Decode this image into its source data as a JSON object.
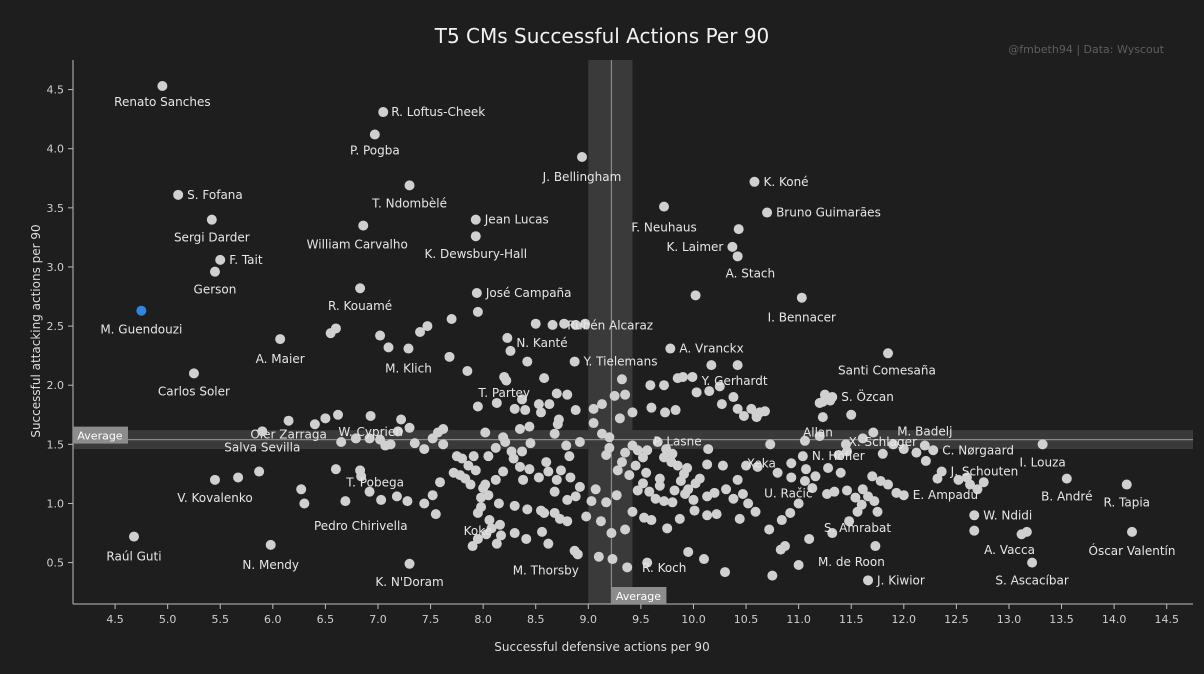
{
  "header": {
    "title": "T5 CMs Successful Actions Per 90",
    "credit": "@fmbeth94 | Data: Wyscout"
  },
  "colors": {
    "background": "#1e1e1e",
    "point": "#d0d0d0",
    "highlight": "#2f86e0",
    "text": "#e6e6e6",
    "axis": "#bdbdbd"
  },
  "chart_data": {
    "type": "scatter",
    "title": "T5 CMs Successful Actions Per 90",
    "xlabel": "Successful defensive actions per 90",
    "ylabel": "Successful attacking actions per 90",
    "xlim": [
      4.1,
      14.75
    ],
    "ylim": [
      0.15,
      4.75
    ],
    "x_ticks": [
      "4.5",
      "5.0",
      "5.5",
      "6.0",
      "6.5",
      "7.0",
      "7.5",
      "8.0",
      "8.5",
      "9.0",
      "9.5",
      "10.0",
      "10.5",
      "11.0",
      "11.5",
      "12.0",
      "12.5",
      "13.0",
      "13.5",
      "14.0",
      "14.5"
    ],
    "y_ticks": [
      "0.5",
      "1.0",
      "1.5",
      "2.0",
      "2.5",
      "3.0",
      "3.5",
      "4.0",
      "4.5"
    ],
    "grid": false,
    "average": {
      "x": 9.22,
      "y": 1.54,
      "x_band": [
        9.0,
        9.42
      ],
      "y_band": [
        1.46,
        1.62
      ],
      "label": "Average"
    },
    "points_labeled": [
      {
        "name": "Renato Sanches",
        "x": 4.95,
        "y": 4.53
      },
      {
        "name": "R. Loftus-Cheek",
        "x": 7.05,
        "y": 4.31
      },
      {
        "name": "P. Pogba",
        "x": 6.97,
        "y": 4.12
      },
      {
        "name": "J. Bellingham",
        "x": 8.94,
        "y": 3.93
      },
      {
        "name": "K. Koné",
        "x": 10.58,
        "y": 3.72
      },
      {
        "name": "T. Ndombèlé",
        "x": 7.3,
        "y": 3.69
      },
      {
        "name": "S. Fofana",
        "x": 5.1,
        "y": 3.61
      },
      {
        "name": "F. Neuhaus",
        "x": 9.72,
        "y": 3.51
      },
      {
        "name": "Bruno Guimarães",
        "x": 10.7,
        "y": 3.46
      },
      {
        "name": "Jean Lucas",
        "x": 7.93,
        "y": 3.4
      },
      {
        "name": "Sergi Darder",
        "x": 5.42,
        "y": 3.4
      },
      {
        "name": "William Carvalho",
        "x": 6.86,
        "y": 3.35
      },
      {
        "name": "K. Dewsbury-Hall",
        "x": 7.93,
        "y": 3.26
      },
      {
        "name": "K. Laimer",
        "x": 10.37,
        "y": 3.17
      },
      {
        "name": "F. Tait",
        "x": 5.5,
        "y": 3.06
      },
      {
        "name": "A. Stach",
        "x": 10.42,
        "y": 3.09
      },
      {
        "name": "Gerson",
        "x": 5.45,
        "y": 2.96
      },
      {
        "name": "R. Kouamé",
        "x": 6.83,
        "y": 2.82
      },
      {
        "name": "José Campaña",
        "x": 7.94,
        "y": 2.78
      },
      {
        "name": "I. Bennacer",
        "x": 11.03,
        "y": 2.74
      },
      {
        "name": "M. Guendouzi",
        "x": 4.75,
        "y": 2.63,
        "highlight": true
      },
      {
        "name": "Rubén Alcaraz",
        "x": 8.97,
        "y": 2.52
      },
      {
        "name": "N. Kanté",
        "x": 8.23,
        "y": 2.4
      },
      {
        "name": "A. Maier",
        "x": 6.07,
        "y": 2.39
      },
      {
        "name": "A. Vranckx",
        "x": 9.78,
        "y": 2.31
      },
      {
        "name": "M. Klich",
        "x": 7.29,
        "y": 2.31
      },
      {
        "name": "Santi Comesaña",
        "x": 11.85,
        "y": 2.27
      },
      {
        "name": "Y. Tielemans",
        "x": 8.87,
        "y": 2.2
      },
      {
        "name": "Y. Gerhardt",
        "x": 10.42,
        "y": 2.17
      },
      {
        "name": "Carlos Soler",
        "x": 5.25,
        "y": 2.1
      },
      {
        "name": "T. Partey",
        "x": 8.2,
        "y": 2.07
      },
      {
        "name": "S. Özcan",
        "x": 11.32,
        "y": 1.9
      },
      {
        "name": "W. Cyprien",
        "x": 6.93,
        "y": 1.74
      },
      {
        "name": "Oier Zarraga",
        "x": 6.15,
        "y": 1.7
      },
      {
        "name": "P. Lasne",
        "x": 9.2,
        "y": 1.56
      },
      {
        "name": "M. Badelj",
        "x": 12.2,
        "y": 1.49
      },
      {
        "name": "X. Schlager",
        "x": 11.8,
        "y": 1.42
      },
      {
        "name": "Allan",
        "x": 11.45,
        "y": 1.5
      },
      {
        "name": "I. Louza",
        "x": 13.32,
        "y": 1.5
      },
      {
        "name": "C. Nørgaard",
        "x": 12.28,
        "y": 1.45
      },
      {
        "name": "Salva Sevilla",
        "x": 5.9,
        "y": 1.61
      },
      {
        "name": "N. Höfler",
        "x": 11.04,
        "y": 1.4
      },
      {
        "name": "Xeka",
        "x": 10.93,
        "y": 1.34
      },
      {
        "name": "J. Schouten",
        "x": 12.36,
        "y": 1.27
      },
      {
        "name": "T. Pobega",
        "x": 6.83,
        "y": 1.28
      },
      {
        "name": "U. Račić",
        "x": 10.93,
        "y": 1.22
      },
      {
        "name": "B. André",
        "x": 13.55,
        "y": 1.21
      },
      {
        "name": "R. Tapia",
        "x": 14.12,
        "y": 1.16
      },
      {
        "name": "V. Kovalenko",
        "x": 5.45,
        "y": 1.2
      },
      {
        "name": "E. Ampadu",
        "x": 12.0,
        "y": 1.07
      },
      {
        "name": "S. Amrabat",
        "x": 11.75,
        "y": 0.93
      },
      {
        "name": "W. Ndidi",
        "x": 12.67,
        "y": 0.9
      },
      {
        "name": "Pedro Chirivella",
        "x": 7.55,
        "y": 0.91
      },
      {
        "name": "Koke",
        "x": 7.95,
        "y": 0.92
      },
      {
        "name": "Óscar Valentín",
        "x": 14.17,
        "y": 0.76
      },
      {
        "name": "A. Vacca",
        "x": 13.12,
        "y": 0.74
      },
      {
        "name": "Raúl Guti",
        "x": 4.68,
        "y": 0.72
      },
      {
        "name": "M. de Roon",
        "x": 11.73,
        "y": 0.64
      },
      {
        "name": "N. Mendy",
        "x": 5.98,
        "y": 0.65
      },
      {
        "name": "R. Koch",
        "x": 9.95,
        "y": 0.59
      },
      {
        "name": "M. Thorsby",
        "x": 8.9,
        "y": 0.57
      },
      {
        "name": "S. Ascacíbar",
        "x": 13.22,
        "y": 0.5
      },
      {
        "name": "K. N'Doram",
        "x": 7.3,
        "y": 0.49
      },
      {
        "name": "J. Kiwior",
        "x": 11.66,
        "y": 0.35
      }
    ],
    "points_unlabeled": [
      [
        10.02,
        2.76
      ],
      [
        8.58,
        2.06
      ],
      [
        10.43,
        3.32
      ],
      [
        7.85,
        2.12
      ],
      [
        7.95,
        2.62
      ],
      [
        8.5,
        2.52
      ],
      [
        8.66,
        2.51
      ],
      [
        8.77,
        2.52
      ],
      [
        8.88,
        2.51
      ],
      [
        8.42,
        2.2
      ],
      [
        9.32,
        2.05
      ],
      [
        9.59,
        2.0
      ],
      [
        9.72,
        2.0
      ],
      [
        10.17,
        2.17
      ],
      [
        9.85,
        2.06
      ],
      [
        9.9,
        2.07
      ],
      [
        9.99,
        2.07
      ],
      [
        10.25,
        1.99
      ],
      [
        10.15,
        1.95
      ],
      [
        11.2,
        1.85
      ],
      [
        11.3,
        1.87
      ],
      [
        11.23,
        1.73
      ],
      [
        10.42,
        1.8
      ],
      [
        10.55,
        1.8
      ],
      [
        10.6,
        1.75
      ],
      [
        10.63,
        1.77
      ],
      [
        10.68,
        1.78
      ],
      [
        10.48,
        1.74
      ],
      [
        10.27,
        1.84
      ],
      [
        11.23,
        1.86
      ],
      [
        11.25,
        1.92
      ],
      [
        6.55,
        2.44
      ],
      [
        6.6,
        2.48
      ],
      [
        7.4,
        2.45
      ],
      [
        7.47,
        2.5
      ],
      [
        7.7,
        2.56
      ],
      [
        7.1,
        2.32
      ],
      [
        7.02,
        2.42
      ],
      [
        7.68,
        2.24
      ],
      [
        8.26,
        2.29
      ],
      [
        8.22,
        2.04
      ],
      [
        8.37,
        1.88
      ],
      [
        8.7,
        1.93
      ],
      [
        8.8,
        1.92
      ],
      [
        8.55,
        1.77
      ],
      [
        8.63,
        1.84
      ],
      [
        8.71,
        1.67
      ],
      [
        8.53,
        1.84
      ],
      [
        8.13,
        1.85
      ],
      [
        7.95,
        1.82
      ],
      [
        8.3,
        1.8
      ],
      [
        8.4,
        1.79
      ],
      [
        8.88,
        1.79
      ],
      [
        9.05,
        1.8
      ],
      [
        9.13,
        1.84
      ],
      [
        9.25,
        1.91
      ],
      [
        9.35,
        1.92
      ],
      [
        9.3,
        1.72
      ],
      [
        9.42,
        1.77
      ],
      [
        9.6,
        1.81
      ],
      [
        9.73,
        1.77
      ],
      [
        9.83,
        1.79
      ],
      [
        10.03,
        1.94
      ],
      [
        10.38,
        1.9
      ],
      [
        10.6,
        1.73
      ],
      [
        11.5,
        1.75
      ],
      [
        11.61,
        1.55
      ],
      [
        11.71,
        1.6
      ],
      [
        11.2,
        1.57
      ],
      [
        11.06,
        1.53
      ],
      [
        10.73,
        1.5
      ],
      [
        10.14,
        1.46
      ],
      [
        9.79,
        1.35
      ],
      [
        9.74,
        1.46
      ],
      [
        9.56,
        1.45
      ],
      [
        9.52,
        1.39
      ],
      [
        9.42,
        1.49
      ],
      [
        9.47,
        1.45
      ],
      [
        9.66,
        1.52
      ],
      [
        9.8,
        1.42
      ],
      [
        8.92,
        1.52
      ],
      [
        8.79,
        1.49
      ],
      [
        8.68,
        1.59
      ],
      [
        8.45,
        1.51
      ],
      [
        8.37,
        1.44
      ],
      [
        8.27,
        1.44
      ],
      [
        8.21,
        1.52
      ],
      [
        8.19,
        1.56
      ],
      [
        8.12,
        1.47
      ],
      [
        8.05,
        1.4
      ],
      [
        7.91,
        1.4
      ],
      [
        7.8,
        1.38
      ],
      [
        7.75,
        1.4
      ],
      [
        7.62,
        1.5
      ],
      [
        7.57,
        1.6
      ],
      [
        7.52,
        1.55
      ],
      [
        7.44,
        1.46
      ],
      [
        7.35,
        1.51
      ],
      [
        7.19,
        1.61
      ],
      [
        7.12,
        1.5
      ],
      [
        7.07,
        1.49
      ],
      [
        7.02,
        1.54
      ],
      [
        6.92,
        1.55
      ],
      [
        6.79,
        1.55
      ],
      [
        6.65,
        1.52
      ],
      [
        6.4,
        1.67
      ],
      [
        6.5,
        1.72
      ],
      [
        6.62,
        1.75
      ],
      [
        7.22,
        1.71
      ],
      [
        7.3,
        1.64
      ],
      [
        7.62,
        1.63
      ],
      [
        8.02,
        1.6
      ],
      [
        8.35,
        1.63
      ],
      [
        8.44,
        1.65
      ],
      [
        8.72,
        1.71
      ],
      [
        9.05,
        1.68
      ],
      [
        9.13,
        1.59
      ],
      [
        9.17,
        1.41
      ],
      [
        9.2,
        1.47
      ],
      [
        9.35,
        1.43
      ],
      [
        9.32,
        1.35
      ],
      [
        9.45,
        1.32
      ],
      [
        9.55,
        1.26
      ],
      [
        9.68,
        1.21
      ],
      [
        9.88,
        1.19
      ],
      [
        9.58,
        1.1
      ],
      [
        9.64,
        1.04
      ],
      [
        9.72,
        1.02
      ],
      [
        9.8,
        1.01
      ],
      [
        9.92,
        1.08
      ],
      [
        10.0,
        1.03
      ],
      [
        10.13,
        1.06
      ],
      [
        10.2,
        1.09
      ],
      [
        10.31,
        1.12
      ],
      [
        10.38,
        1.04
      ],
      [
        10.47,
        1.08
      ],
      [
        10.52,
        1.0
      ],
      [
        10.59,
        0.93
      ],
      [
        10.44,
        0.87
      ],
      [
        10.22,
        0.91
      ],
      [
        10.13,
        0.9
      ],
      [
        10.01,
        0.94
      ],
      [
        9.87,
        0.87
      ],
      [
        9.75,
        0.79
      ],
      [
        9.6,
        0.86
      ],
      [
        9.53,
        0.88
      ],
      [
        9.42,
        0.93
      ],
      [
        9.35,
        0.78
      ],
      [
        9.22,
        0.75
      ],
      [
        9.12,
        0.85
      ],
      [
        8.98,
        0.89
      ],
      [
        8.8,
        0.85
      ],
      [
        8.73,
        0.87
      ],
      [
        8.68,
        0.92
      ],
      [
        8.58,
        0.92
      ],
      [
        8.55,
        0.94
      ],
      [
        8.42,
        0.95
      ],
      [
        8.3,
        0.98
      ],
      [
        8.15,
        1.0
      ],
      [
        8.05,
        1.07
      ],
      [
        8.0,
        1.13
      ],
      [
        7.88,
        1.16
      ],
      [
        7.83,
        1.21
      ],
      [
        7.78,
        1.24
      ],
      [
        7.72,
        1.26
      ],
      [
        7.59,
        1.18
      ],
      [
        7.52,
        1.07
      ],
      [
        7.44,
        1.0
      ],
      [
        7.28,
        1.02
      ],
      [
        7.18,
        1.06
      ],
      [
        7.03,
        1.03
      ],
      [
        6.92,
        1.1
      ],
      [
        6.84,
        1.23
      ],
      [
        6.6,
        1.29
      ],
      [
        6.69,
        1.02
      ],
      [
        6.27,
        1.12
      ],
      [
        6.3,
        1.0
      ],
      [
        5.67,
        1.22
      ],
      [
        5.87,
        1.27
      ],
      [
        7.98,
        0.97
      ],
      [
        8.06,
        0.86
      ],
      [
        8.16,
        0.82
      ],
      [
        8.08,
        0.79
      ],
      [
        8.03,
        0.74
      ],
      [
        7.95,
        0.7
      ],
      [
        7.9,
        0.64
      ],
      [
        8.13,
        0.66
      ],
      [
        8.41,
        0.7
      ],
      [
        8.56,
        0.76
      ],
      [
        8.3,
        0.75
      ],
      [
        8.17,
        0.73
      ],
      [
        8.62,
        0.66
      ],
      [
        8.87,
        0.6
      ],
      [
        9.1,
        0.55
      ],
      [
        9.23,
        0.53
      ],
      [
        9.37,
        0.46
      ],
      [
        9.56,
        0.5
      ],
      [
        10.1,
        0.53
      ],
      [
        10.3,
        0.42
      ],
      [
        10.75,
        0.39
      ],
      [
        10.83,
        0.61
      ],
      [
        10.87,
        0.64
      ],
      [
        11.0,
        0.48
      ],
      [
        11.1,
        0.7
      ],
      [
        11.32,
        0.75
      ],
      [
        11.48,
        0.85
      ],
      [
        11.56,
        0.93
      ],
      [
        11.6,
        0.99
      ],
      [
        11.72,
        1.02
      ],
      [
        11.93,
        1.09
      ],
      [
        11.85,
        1.16
      ],
      [
        11.78,
        1.19
      ],
      [
        11.66,
        1.06
      ],
      [
        11.54,
        1.05
      ],
      [
        11.46,
        1.11
      ],
      [
        11.34,
        1.1
      ],
      [
        11.27,
        1.08
      ],
      [
        11.13,
        1.13
      ],
      [
        11.06,
        1.19
      ],
      [
        11.0,
        1.0
      ],
      [
        10.92,
        0.92
      ],
      [
        10.84,
        0.86
      ],
      [
        10.72,
        0.78
      ],
      [
        10.42,
        1.2
      ],
      [
        10.5,
        1.32
      ],
      [
        10.61,
        1.31
      ],
      [
        10.8,
        1.26
      ],
      [
        11.07,
        1.29
      ],
      [
        11.16,
        1.23
      ],
      [
        11.28,
        1.3
      ],
      [
        11.38,
        1.41
      ],
      [
        11.46,
        1.44
      ],
      [
        11.9,
        1.5
      ],
      [
        12.0,
        1.46
      ],
      [
        12.12,
        1.43
      ],
      [
        12.21,
        1.36
      ],
      [
        12.32,
        1.21
      ],
      [
        12.52,
        1.2
      ],
      [
        12.6,
        1.22
      ],
      [
        12.76,
        1.18
      ],
      [
        12.7,
        1.12
      ],
      [
        12.63,
        1.16
      ],
      [
        11.4,
        1.26
      ],
      [
        11.61,
        1.12
      ],
      [
        11.7,
        1.23
      ],
      [
        12.67,
        0.77
      ],
      [
        13.17,
        0.76
      ],
      [
        9.27,
        1.07
      ],
      [
        9.47,
        1.11
      ],
      [
        9.68,
        1.15
      ],
      [
        9.82,
        1.11
      ],
      [
        9.95,
        1.12
      ],
      [
        10.06,
        1.21
      ],
      [
        10.28,
        1.32
      ],
      [
        10.13,
        1.33
      ],
      [
        9.94,
        1.3
      ],
      [
        9.85,
        1.32
      ],
      [
        9.72,
        1.39
      ],
      [
        9.91,
        1.25
      ],
      [
        10.02,
        1.17
      ],
      [
        9.39,
        1.24
      ],
      [
        9.28,
        1.28
      ],
      [
        9.07,
        1.12
      ],
      [
        8.92,
        1.14
      ],
      [
        8.83,
        1.22
      ],
      [
        8.7,
        1.2
      ],
      [
        8.62,
        1.27
      ],
      [
        8.53,
        1.22
      ],
      [
        8.44,
        1.29
      ],
      [
        8.35,
        1.31
      ],
      [
        8.29,
        1.38
      ],
      [
        8.19,
        1.27
      ],
      [
        8.12,
        1.2
      ],
      [
        8.02,
        1.16
      ],
      [
        7.93,
        1.28
      ],
      [
        7.86,
        1.32
      ],
      [
        7.98,
        1.05
      ],
      [
        8.68,
        1.1
      ],
      [
        8.8,
        1.03
      ],
      [
        8.88,
        1.06
      ],
      [
        9.03,
        1.02
      ],
      [
        9.17,
        1.01
      ],
      [
        9.52,
        1.17
      ],
      [
        8.82,
        1.4
      ],
      [
        8.6,
        1.35
      ],
      [
        8.38,
        1.2
      ],
      [
        8.74,
        1.28
      ]
    ]
  }
}
